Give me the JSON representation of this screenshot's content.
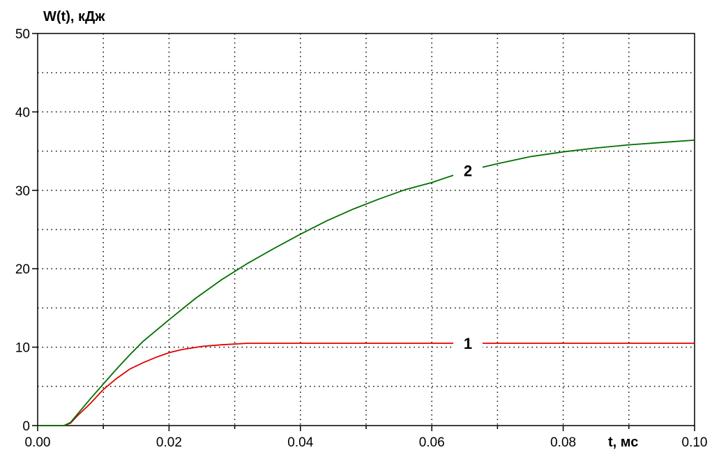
{
  "chart_data": {
    "type": "line",
    "ylabel": "W(t), кДж",
    "xlabel": "t, мс",
    "xlim": [
      0.0,
      0.1
    ],
    "ylim": [
      0,
      50
    ],
    "x_ticks": [
      "0.00",
      "0.02",
      "0.04",
      "0.06",
      "0.08",
      "0.10"
    ],
    "y_ticks": [
      "0",
      "10",
      "20",
      "30",
      "40",
      "50"
    ],
    "grid": true,
    "series": [
      {
        "name": "1",
        "color": "#e00000",
        "points": [
          [
            0.0,
            0
          ],
          [
            0.004,
            0
          ],
          [
            0.005,
            0.3
          ],
          [
            0.006,
            1.2
          ],
          [
            0.008,
            2.8
          ],
          [
            0.01,
            4.6
          ],
          [
            0.012,
            6.0
          ],
          [
            0.014,
            7.2
          ],
          [
            0.016,
            8.0
          ],
          [
            0.018,
            8.7
          ],
          [
            0.02,
            9.3
          ],
          [
            0.022,
            9.7
          ],
          [
            0.025,
            10.1
          ],
          [
            0.028,
            10.3
          ],
          [
            0.032,
            10.5
          ],
          [
            0.04,
            10.5
          ],
          [
            0.06,
            10.5
          ],
          [
            0.08,
            10.5
          ],
          [
            0.1,
            10.5
          ]
        ]
      },
      {
        "name": "2",
        "color": "#007000",
        "points": [
          [
            0.0,
            0
          ],
          [
            0.004,
            0
          ],
          [
            0.005,
            0.4
          ],
          [
            0.006,
            1.4
          ],
          [
            0.008,
            3.4
          ],
          [
            0.01,
            5.3
          ],
          [
            0.012,
            7.2
          ],
          [
            0.014,
            9.0
          ],
          [
            0.016,
            10.7
          ],
          [
            0.02,
            13.5
          ],
          [
            0.024,
            16.2
          ],
          [
            0.028,
            18.6
          ],
          [
            0.032,
            20.7
          ],
          [
            0.036,
            22.6
          ],
          [
            0.04,
            24.4
          ],
          [
            0.044,
            26.1
          ],
          [
            0.048,
            27.6
          ],
          [
            0.052,
            28.9
          ],
          [
            0.056,
            30.1
          ],
          [
            0.06,
            31.0
          ],
          [
            0.065,
            32.4
          ],
          [
            0.07,
            33.4
          ],
          [
            0.075,
            34.3
          ],
          [
            0.08,
            34.9
          ],
          [
            0.085,
            35.4
          ],
          [
            0.09,
            35.8
          ],
          [
            0.095,
            36.1
          ],
          [
            0.1,
            36.4
          ]
        ]
      }
    ]
  }
}
